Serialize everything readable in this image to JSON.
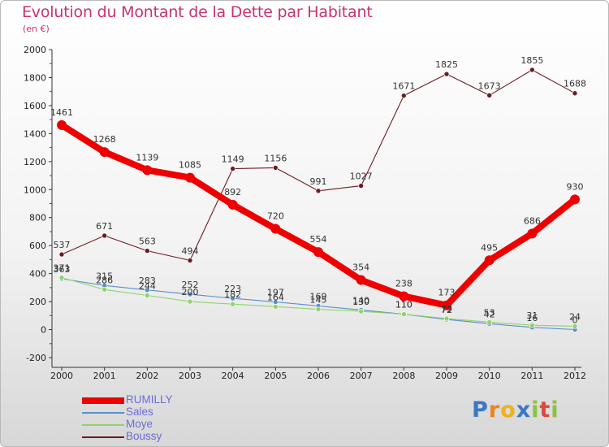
{
  "header": {
    "title": "Evolution du Montant de la Dette par Habitant",
    "subtitle": "(en €)"
  },
  "logo": {
    "letters": [
      "P",
      "r",
      "o",
      "x",
      "i",
      "t",
      "i"
    ],
    "colors": [
      "#3a78c4",
      "#e9861c",
      "#f0b21c",
      "#3a78c4",
      "#8cc43c",
      "#d94a3a",
      "#8cc43c"
    ]
  },
  "chart_data": {
    "type": "line",
    "x": [
      2000,
      2001,
      2002,
      2003,
      2004,
      2005,
      2006,
      2007,
      2008,
      2009,
      2010,
      2011,
      2012
    ],
    "xtick_labels": [
      "2000",
      "2001",
      "2002",
      "2003",
      "2004",
      "2005",
      "2006",
      "2007",
      "2008",
      "2009",
      "2010",
      "2011",
      "2012"
    ],
    "ylim": [
      -200,
      2000
    ],
    "yticks": [
      -200,
      0,
      200,
      400,
      600,
      800,
      1000,
      1200,
      1400,
      1600,
      1800,
      2000
    ],
    "grid": false,
    "legend_position": "bottom-left",
    "series": [
      {
        "name": "Boussy",
        "color": "#6e1a22",
        "values": [
          537,
          671,
          563,
          494,
          1149,
          1156,
          991,
          1027,
          1671,
          1825,
          1673,
          1855,
          1688
        ],
        "labels": [
          "537",
          "671",
          "563",
          "494",
          "1149",
          "1156",
          "991",
          "1027",
          "1671",
          "1825",
          "1673",
          "1855",
          "1688"
        ]
      },
      {
        "name": "Sales",
        "color": "#5b8fc9",
        "values": [
          363,
          315,
          283,
          252,
          223,
          197,
          169,
          140,
          110,
          72,
          42,
          16,
          0
        ],
        "labels": [
          "363",
          "315",
          "283",
          "252",
          "223",
          "197",
          "169",
          "140",
          "110",
          "72",
          "42",
          "16",
          "0"
        ]
      },
      {
        "name": "Moye",
        "color": "#8fd36a",
        "values": [
          371,
          286,
          244,
          200,
          182,
          164,
          145,
          130,
          110,
          79,
          53,
          31,
          24
        ],
        "labels": [
          "371",
          "286",
          "244",
          "200",
          "182",
          "164",
          "145",
          "130",
          "110",
          "79",
          "53",
          "31",
          "24"
        ]
      },
      {
        "name": "RUMILLY",
        "color": "#ee0000",
        "values": [
          1461,
          1268,
          1139,
          1085,
          892,
          720,
          554,
          354,
          238,
          173,
          495,
          686,
          930
        ],
        "labels": [
          "1461",
          "1268",
          "1139",
          "1085",
          "892",
          "720",
          "554",
          "354",
          "238",
          "173",
          "495",
          "686",
          "930"
        ]
      }
    ],
    "legend_order": [
      "RUMILLY",
      "Sales",
      "Moye",
      "Boussy"
    ]
  }
}
